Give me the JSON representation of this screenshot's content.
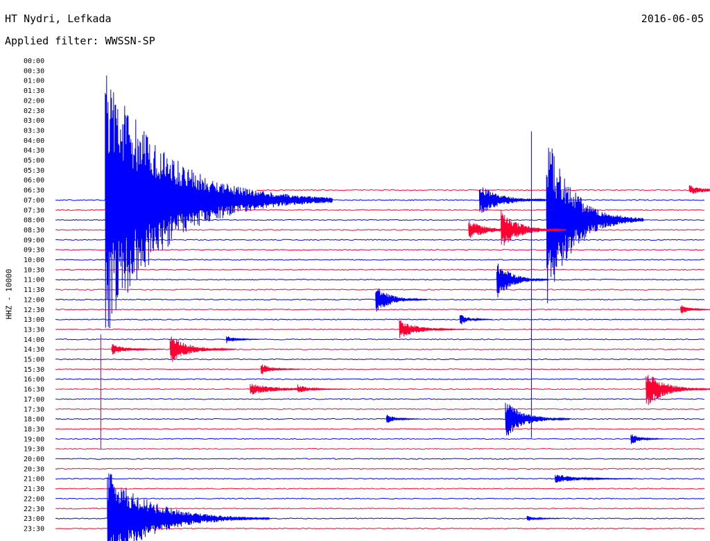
{
  "header": {
    "station": "HT Nydri, Lefkada",
    "filter": "Applied filter: WWSSN-SP",
    "date": "2016-06-05",
    "channel_label": "HHZ - 10000"
  },
  "colors": {
    "trace_a": "#ff0033",
    "trace_b": "#0000ff",
    "text": "#000000"
  },
  "chart_data": {
    "type": "helicorder",
    "title": "HT Nydri, Lefkada",
    "subtitle": "Applied filter: WWSSN-SP",
    "date": "2016-06-05",
    "ylabel": "HHZ - 10000",
    "row_labels": [
      "00:00",
      "00:30",
      "01:00",
      "01:30",
      "02:00",
      "02:30",
      "03:00",
      "03:30",
      "04:00",
      "04:30",
      "05:00",
      "05:30",
      "06:00",
      "06:30",
      "07:00",
      "07:30",
      "08:00",
      "08:30",
      "09:00",
      "09:30",
      "10:00",
      "10:30",
      "11:00",
      "11:30",
      "12:00",
      "12:30",
      "13:00",
      "13:30",
      "14:00",
      "14:30",
      "15:00",
      "15:30",
      "16:00",
      "16:30",
      "17:00",
      "17:30",
      "18:00",
      "18:30",
      "19:00",
      "19:30",
      "20:00",
      "20:30",
      "21:00",
      "21:30",
      "22:00",
      "22:30",
      "23:00",
      "23:30"
    ],
    "row_minutes": 30,
    "trace_start_row": 13,
    "trace_start_fraction": 0.31,
    "events": [
      {
        "row": 13,
        "minute": 29.3,
        "amp": 0.5,
        "dur": 1.0
      },
      {
        "row": 14,
        "minute": 2.3,
        "amp": 14,
        "dur": 3.5
      },
      {
        "row": 14,
        "minute": 19.6,
        "amp": 1.6,
        "dur": 1.2
      },
      {
        "row": 16,
        "minute": 22.7,
        "amp": 9,
        "dur": 1.5
      },
      {
        "row": 17,
        "minute": 19.1,
        "amp": 1.0,
        "dur": 1.0
      },
      {
        "row": 17,
        "minute": 20.6,
        "amp": 2.0,
        "dur": 1.0
      },
      {
        "row": 22,
        "minute": 20.4,
        "amp": 2.0,
        "dur": 0.8
      },
      {
        "row": 24,
        "minute": 14.8,
        "amp": 1.5,
        "dur": 0.8
      },
      {
        "row": 25,
        "minute": 28.9,
        "amp": 0.5,
        "dur": 0.5
      },
      {
        "row": 26,
        "minute": 18.7,
        "amp": 0.6,
        "dur": 0.5
      },
      {
        "row": 27,
        "minute": 15.9,
        "amp": 1.0,
        "dur": 1.0
      },
      {
        "row": 28,
        "minute": 7.9,
        "amp": 0.4,
        "dur": 0.5
      },
      {
        "row": 29,
        "minute": 2.6,
        "amp": 0.6,
        "dur": 0.8
      },
      {
        "row": 29,
        "minute": 5.3,
        "amp": 1.5,
        "dur": 1.0
      },
      {
        "row": 31,
        "minute": 9.5,
        "amp": 0.6,
        "dur": 0.6
      },
      {
        "row": 33,
        "minute": 9.0,
        "amp": 0.6,
        "dur": 1.5
      },
      {
        "row": 33,
        "minute": 11.2,
        "amp": 0.5,
        "dur": 0.6
      },
      {
        "row": 33,
        "minute": 27.3,
        "amp": 2.0,
        "dur": 1.0
      },
      {
        "row": 36,
        "minute": 15.3,
        "amp": 0.5,
        "dur": 0.5
      },
      {
        "row": 36,
        "minute": 20.8,
        "amp": 2.0,
        "dur": 1.0
      },
      {
        "row": 38,
        "minute": 26.6,
        "amp": 0.6,
        "dur": 0.5
      },
      {
        "row": 42,
        "minute": 23.1,
        "amp": 0.5,
        "dur": 1.2
      },
      {
        "row": 46,
        "minute": 2.4,
        "amp": 5,
        "dur": 2.5
      },
      {
        "row": 46,
        "minute": 21.8,
        "amp": 0.3,
        "dur": 0.5
      }
    ],
    "spikes": [
      {
        "row": 22,
        "minute": 22.0,
        "top_row": 7.1,
        "bottom_row": 37.9
      },
      {
        "row": 35,
        "minute": 2.1,
        "top_row": 27.5,
        "bottom_row": 39.0
      }
    ]
  }
}
